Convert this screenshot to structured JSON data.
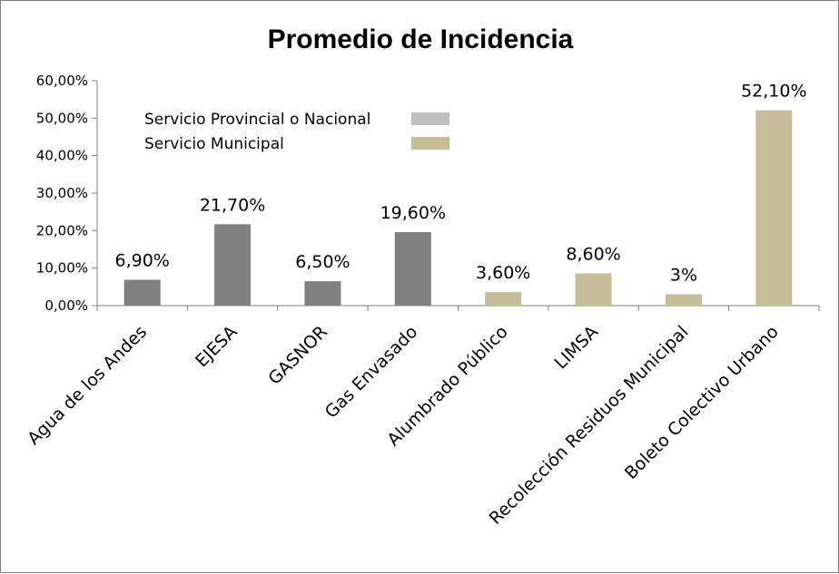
{
  "chart_data": {
    "type": "bar",
    "title": "Promedio de Incidencia",
    "xlabel": "",
    "ylabel": "",
    "ylim": [
      0,
      60
    ],
    "yticks": [
      "0,00%",
      "10,00%",
      "20,00%",
      "30,00%",
      "40,00%",
      "50,00%",
      "60,00%"
    ],
    "grid": false,
    "legend_position": "top-left",
    "legend": [
      {
        "label": "Servicio Provincial o Nacional",
        "color": "#c0c0c0"
      },
      {
        "label": "Servicio Municipal",
        "color": "#c4bd97"
      }
    ],
    "categories": [
      "Agua de los Andes",
      "EJESA",
      "GASNOR",
      "Gas Envasado",
      "Alumbrado Público",
      "LIMSA",
      "Recolección Residuos Municipal",
      "Boleto Colectivo Urbano"
    ],
    "values": [
      6.9,
      21.7,
      6.5,
      19.6,
      3.6,
      8.6,
      3,
      52.1
    ],
    "data_labels": [
      "6,90%",
      "21,70%",
      "6,50%",
      "19,60%",
      "3,60%",
      "8,60%",
      "3%",
      "52,10%"
    ],
    "bar_colors": [
      "#808080",
      "#808080",
      "#808080",
      "#808080",
      "#c4bd97",
      "#c4bd97",
      "#c4bd97",
      "#c4bd97"
    ]
  }
}
